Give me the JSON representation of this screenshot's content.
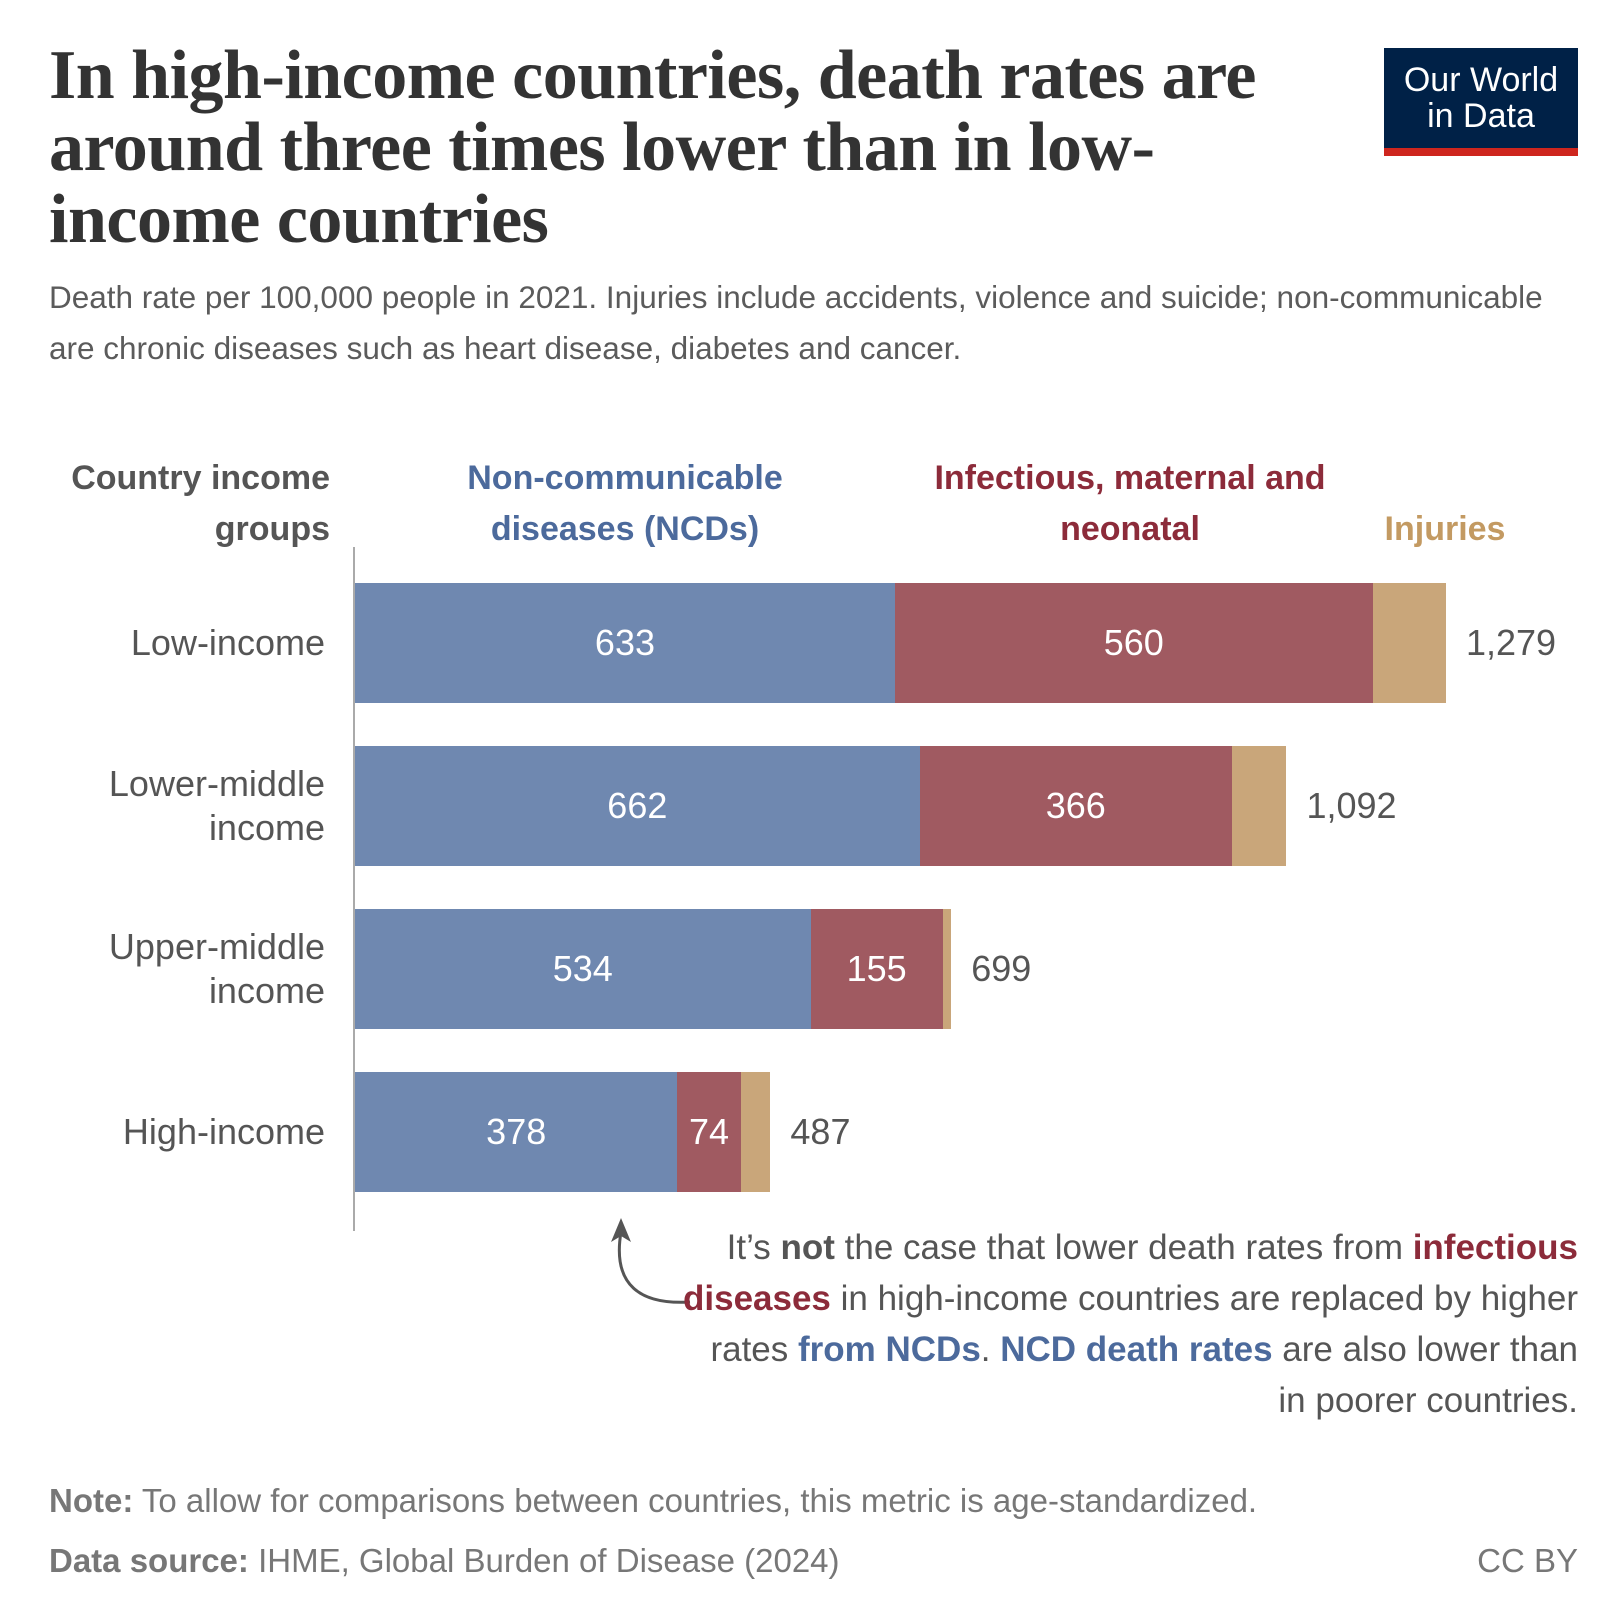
{
  "title": "In high-income countries, death rates are around three times lower than in low-income countries",
  "subtitle": "Death rate per 100,000 people in 2021. Injuries include accidents, violence and suicide; non-communicable are chronic diseases such as heart disease, diabetes and cancer.",
  "logo": {
    "line1": "Our World",
    "line2": "in Data"
  },
  "colors": {
    "ncd": "#6f88b0",
    "infectious": "#a05a61",
    "injuries": "#c9a67a",
    "ncd_text": "#4c6a9c",
    "infectious_text": "#8c2b3a",
    "injuries_text": "#c39a62"
  },
  "chart_data": {
    "type": "bar",
    "orientation": "horizontal",
    "stacked": true,
    "category_header": "Country income groups",
    "categories": [
      "Low-income",
      "Lower-middle income",
      "Upper-middle income",
      "High-income"
    ],
    "series": [
      {
        "name": "Non-communicable diseases (NCDs)",
        "values": [
          633,
          662,
          534,
          378
        ]
      },
      {
        "name": "Infectious, maternal and neonatal",
        "values": [
          560,
          366,
          155,
          74
        ]
      },
      {
        "name": "Injuries",
        "values": [
          86,
          64,
          10,
          35
        ]
      }
    ],
    "totals": [
      "1,279",
      "1,092",
      "699",
      "487"
    ],
    "segment_labels": [
      [
        "633",
        "560"
      ],
      [
        "662",
        "366"
      ],
      [
        "534",
        "155"
      ],
      [
        "378",
        "74"
      ]
    ]
  },
  "annotation": {
    "p1": "It’s ",
    "p2": "not",
    "p3": " the case that lower death rates from ",
    "p4": "infectious diseases",
    "p5": " in high-income countries are replaced by higher rates ",
    "p6": "from NCDs",
    "p7": ". ",
    "p8": "NCD death rates",
    "p9": " are also lower than in poorer countries."
  },
  "footer": {
    "note_label": "Note:",
    "note": " To allow for comparisons between countries, this metric is age-standardized.",
    "source_label": "Data source:",
    "source": " IHME, Global Burden of Disease (2024)",
    "license": "CC BY"
  }
}
